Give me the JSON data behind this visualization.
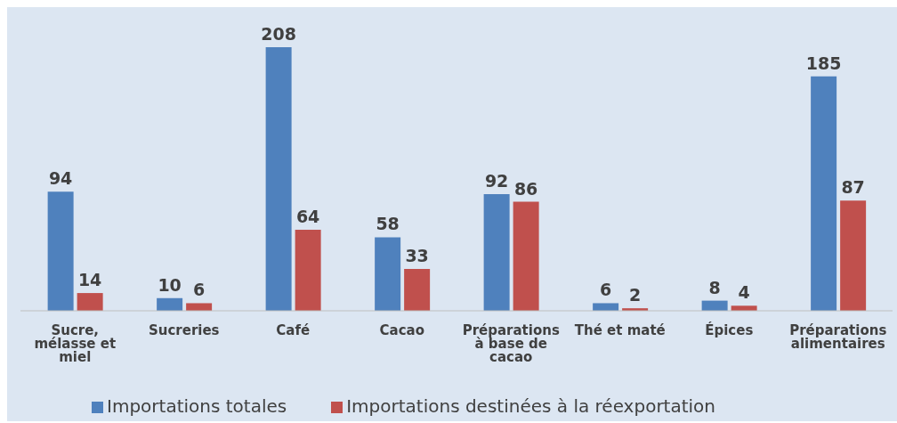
{
  "chart_data": {
    "type": "bar",
    "categories": [
      "Sucre, mélasse et miel",
      "Sucreries",
      "Café",
      "Cacao",
      "Préparations à base de cacao",
      "Thé et maté",
      "Épices",
      "Préparations alimentaires"
    ],
    "series": [
      {
        "name": "Importations totales",
        "color": "#4f81bd",
        "values": [
          94,
          10,
          208,
          58,
          92,
          6,
          8,
          185
        ]
      },
      {
        "name": "Importations destinées à la réexportation",
        "color": "#c0504d",
        "values": [
          14,
          6,
          64,
          33,
          86,
          2,
          4,
          87
        ]
      }
    ],
    "data_labels": true,
    "legend": "bottom left",
    "grid": false
  }
}
